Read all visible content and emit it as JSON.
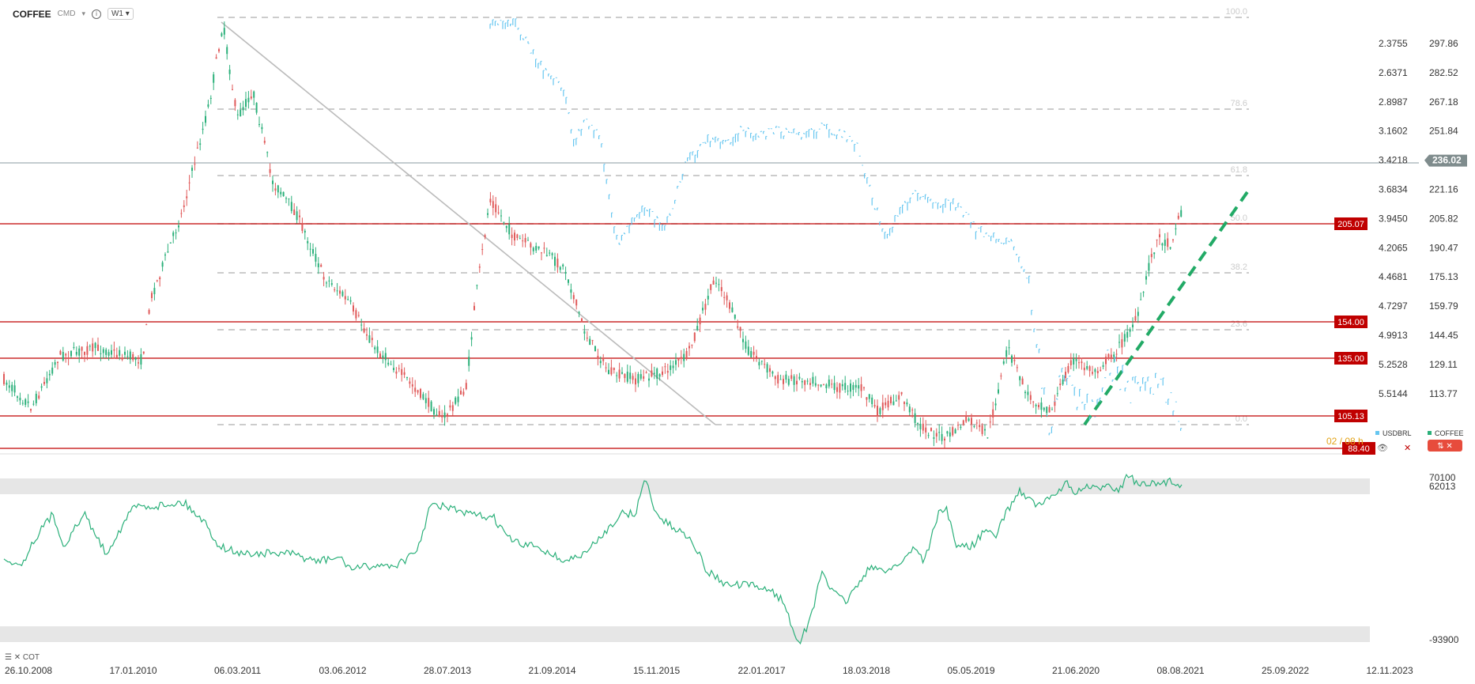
{
  "header": {
    "symbol": "COFFEE",
    "type": "CMD",
    "timeframe": "W1"
  },
  "colors": {
    "coffee": "#2bb07a",
    "usdbrl": "#66c6f0",
    "level": "#c00000",
    "fib": "#bbbbbb",
    "trend": "#22aa66"
  },
  "chart_data": [
    {
      "type": "candlestick",
      "title": "COFFEE",
      "right_axis": [
        "297.86",
        "282.52",
        "267.18",
        "251.84",
        "236.02",
        "221.16",
        "205.82",
        "190.47",
        "175.13",
        "159.79",
        "144.45",
        "129.11",
        "113.77"
      ],
      "current_price": "236.02",
      "levels": [
        "205.07",
        "154.00",
        "135.00",
        "105.13",
        "88.40"
      ],
      "fib_labels": [
        "100.0",
        "78.6",
        "61.8",
        "50.0",
        "38.2",
        "23.6",
        "0.0"
      ],
      "legend": [
        "USDBRL",
        "COFFEE"
      ],
      "overlay_label": "02 / 08 h"
    },
    {
      "type": "line",
      "title": "USDBRL",
      "axis": [
        "2.3755",
        "2.6371",
        "2.8987",
        "3.1602",
        "3.4218",
        "3.6834",
        "3.9450",
        "4.2065",
        "4.4681",
        "4.7297",
        "4.9913",
        "5.2528",
        "5.5144"
      ]
    },
    {
      "type": "line",
      "title": "COT",
      "axis": [
        "70100",
        "62013",
        "-93900"
      ]
    }
  ],
  "x_axis": [
    "26.10.2008",
    "17.01.2010",
    "06.03.2011",
    "03.06.2012",
    "28.07.2013",
    "21.09.2014",
    "15.11.2015",
    "22.01.2017",
    "18.03.2018",
    "05.05.2019",
    "21.06.2020",
    "08.08.2021",
    "25.09.2022",
    "12.11.2023"
  ],
  "cot_label": "COT"
}
